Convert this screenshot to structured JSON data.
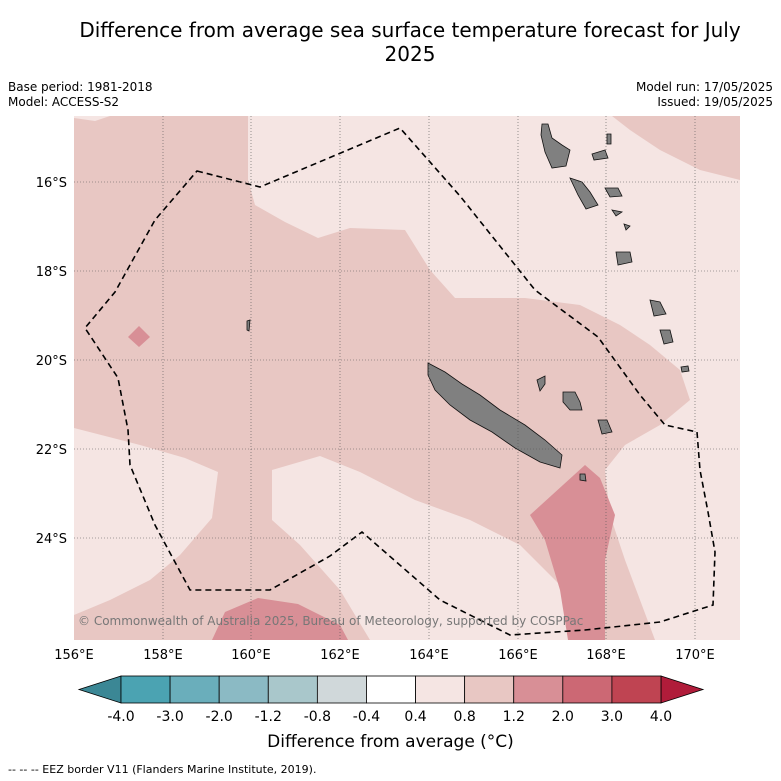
{
  "title": "Difference from average sea surface temperature forecast for July 2025",
  "meta": {
    "base_period": "Base period: 1981-2018",
    "model": "Model: ACCESS-S2",
    "model_run": "Model run: 17/05/2025",
    "issued": "Issued: 19/05/2025"
  },
  "map": {
    "lon_labels": [
      "156°E",
      "158°E",
      "160°E",
      "162°E",
      "164°E",
      "166°E",
      "168°E",
      "170°E"
    ],
    "lat_labels": [
      "16°S",
      "18°S",
      "20°S",
      "22°S",
      "24°S"
    ],
    "copyright": "© Commonwealth of Australia 2025, Bureau of Meteorology, supported by COSPPac"
  },
  "colorbar": {
    "ticks": [
      "-4.0",
      "-3.0",
      "-2.0",
      "-1.2",
      "-0.8",
      "-0.4",
      "0.4",
      "0.8",
      "1.2",
      "2.0",
      "3.0",
      "4.0"
    ],
    "colors": [
      "#4ba3b2",
      "#6aaebb",
      "#8bbac4",
      "#a9c7cb",
      "#d0d8da",
      "#ffffff",
      "#f5e5e3",
      "#e8c7c3",
      "#d88f96",
      "#cc6874",
      "#bf4452"
    ],
    "under_color": "#3b8795",
    "over_color": "#b01c3a",
    "title": "Difference from average (°C)"
  },
  "footer": "-- -- -- EEZ border V11 (Flanders Marine Institute, 2019)."
}
